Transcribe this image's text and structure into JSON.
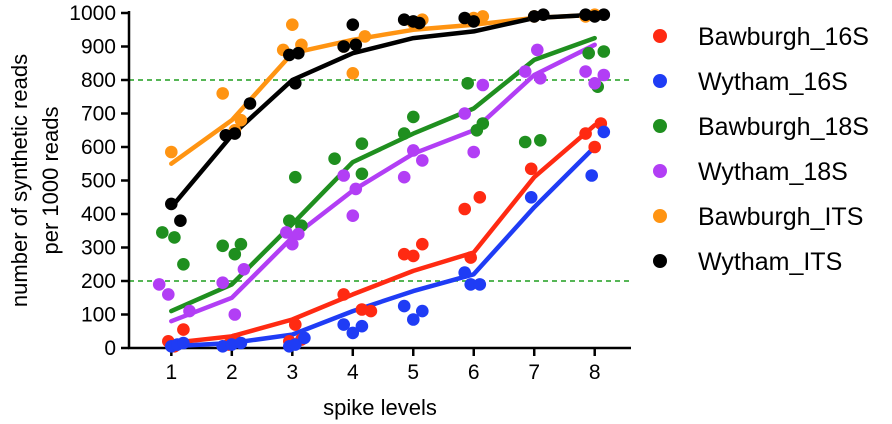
{
  "chart_data": {
    "type": "scatter",
    "xlabel": "spike levels",
    "ylabel_lines": [
      "number of synthetic reads",
      "per 1000 reads"
    ],
    "x_ticks": [
      1,
      2,
      3,
      4,
      5,
      6,
      7,
      8
    ],
    "y_ticks": [
      0,
      100,
      200,
      300,
      400,
      500,
      600,
      700,
      800,
      900,
      1000
    ],
    "xlim": [
      0.3,
      8.6
    ],
    "ylim": [
      0,
      1000
    ],
    "reference_lines": [
      200,
      800
    ],
    "reference_line_color": "#1f9e1f",
    "series": [
      {
        "name": "Bawburgh_16S",
        "color": "#ff2a12",
        "line": [
          [
            1,
            15
          ],
          [
            2,
            35
          ],
          [
            3,
            85
          ],
          [
            4,
            160
          ],
          [
            5,
            230
          ],
          [
            6,
            285
          ],
          [
            7,
            510
          ],
          [
            8,
            665
          ]
        ],
        "points": [
          [
            0.95,
            20
          ],
          [
            1.05,
            5
          ],
          [
            1.2,
            55
          ],
          [
            1.95,
            10
          ],
          [
            2.05,
            25
          ],
          [
            2.95,
            20
          ],
          [
            3.05,
            70
          ],
          [
            3.15,
            25
          ],
          [
            3.85,
            160
          ],
          [
            4.15,
            115
          ],
          [
            4.3,
            110
          ],
          [
            4.85,
            280
          ],
          [
            5.0,
            275
          ],
          [
            5.15,
            310
          ],
          [
            5.85,
            415
          ],
          [
            5.95,
            270
          ],
          [
            6.1,
            450
          ],
          [
            6.95,
            535
          ],
          [
            7.85,
            640
          ],
          [
            8.0,
            600
          ],
          [
            8.1,
            670
          ]
        ]
      },
      {
        "name": "Wytham_16S",
        "color": "#1f3cf5",
        "line": [
          [
            1,
            5
          ],
          [
            2,
            15
          ],
          [
            3,
            40
          ],
          [
            4,
            110
          ],
          [
            5,
            170
          ],
          [
            6,
            220
          ],
          [
            7,
            420
          ],
          [
            8,
            600
          ]
        ],
        "points": [
          [
            1.0,
            5
          ],
          [
            1.1,
            10
          ],
          [
            1.2,
            15
          ],
          [
            1.85,
            5
          ],
          [
            2.0,
            10
          ],
          [
            2.15,
            15
          ],
          [
            2.95,
            5
          ],
          [
            3.05,
            10
          ],
          [
            3.2,
            30
          ],
          [
            3.85,
            70
          ],
          [
            4.0,
            45
          ],
          [
            4.15,
            65
          ],
          [
            4.85,
            125
          ],
          [
            5.0,
            85
          ],
          [
            5.15,
            110
          ],
          [
            5.85,
            225
          ],
          [
            5.95,
            190
          ],
          [
            6.1,
            190
          ],
          [
            6.95,
            450
          ],
          [
            7.95,
            515
          ],
          [
            8.15,
            645
          ]
        ]
      },
      {
        "name": "Bawburgh_18S",
        "color": "#1f8f1f",
        "line": [
          [
            1,
            110
          ],
          [
            2,
            190
          ],
          [
            3,
            370
          ],
          [
            4,
            555
          ],
          [
            5,
            640
          ],
          [
            6,
            715
          ],
          [
            7,
            860
          ],
          [
            8,
            925
          ]
        ],
        "points": [
          [
            0.85,
            345
          ],
          [
            1.05,
            330
          ],
          [
            1.2,
            250
          ],
          [
            1.85,
            305
          ],
          [
            2.05,
            280
          ],
          [
            2.15,
            310
          ],
          [
            2.95,
            380
          ],
          [
            3.05,
            510
          ],
          [
            3.15,
            365
          ],
          [
            3.7,
            565
          ],
          [
            4.15,
            610
          ],
          [
            4.15,
            520
          ],
          [
            4.85,
            640
          ],
          [
            5.0,
            690
          ],
          [
            5.9,
            790
          ],
          [
            6.05,
            650
          ],
          [
            6.15,
            670
          ],
          [
            6.85,
            615
          ],
          [
            7.1,
            620
          ],
          [
            7.9,
            880
          ],
          [
            8.05,
            780
          ],
          [
            8.15,
            885
          ]
        ]
      },
      {
        "name": "Wytham_18S",
        "color": "#b23ef5",
        "line": [
          [
            1,
            80
          ],
          [
            2,
            150
          ],
          [
            3,
            330
          ],
          [
            4,
            470
          ],
          [
            5,
            580
          ],
          [
            6,
            650
          ],
          [
            7,
            815
          ],
          [
            8,
            905
          ]
        ],
        "points": [
          [
            0.8,
            190
          ],
          [
            0.95,
            160
          ],
          [
            1.3,
            110
          ],
          [
            1.85,
            195
          ],
          [
            2.05,
            100
          ],
          [
            2.2,
            235
          ],
          [
            2.9,
            345
          ],
          [
            3.0,
            310
          ],
          [
            3.1,
            340
          ],
          [
            3.85,
            515
          ],
          [
            4.0,
            395
          ],
          [
            4.05,
            475
          ],
          [
            4.85,
            510
          ],
          [
            5.0,
            590
          ],
          [
            5.15,
            560
          ],
          [
            5.85,
            700
          ],
          [
            6.0,
            585
          ],
          [
            6.15,
            785
          ],
          [
            6.85,
            825
          ],
          [
            7.05,
            890
          ],
          [
            7.1,
            805
          ],
          [
            7.85,
            825
          ],
          [
            8.0,
            790
          ],
          [
            8.15,
            815
          ]
        ]
      },
      {
        "name": "Bawburgh_ITS",
        "color": "#ff9412",
        "line": [
          [
            1,
            550
          ],
          [
            2,
            680
          ],
          [
            3,
            880
          ],
          [
            4,
            920
          ],
          [
            5,
            950
          ],
          [
            6,
            965
          ],
          [
            7,
            985
          ],
          [
            8,
            995
          ]
        ],
        "points": [
          [
            1.0,
            585
          ],
          [
            1.85,
            760
          ],
          [
            2.05,
            650
          ],
          [
            2.15,
            680
          ],
          [
            2.85,
            890
          ],
          [
            3.0,
            965
          ],
          [
            3.15,
            905
          ],
          [
            3.85,
            900
          ],
          [
            4.0,
            820
          ],
          [
            4.2,
            930
          ],
          [
            5.0,
            970
          ],
          [
            5.15,
            980
          ],
          [
            6.0,
            985
          ],
          [
            6.15,
            990
          ],
          [
            7.0,
            990
          ],
          [
            7.85,
            990
          ],
          [
            8.0,
            995
          ]
        ]
      },
      {
        "name": "Wytham_ITS",
        "color": "#000000",
        "line": [
          [
            1,
            420
          ],
          [
            2,
            635
          ],
          [
            3,
            800
          ],
          [
            4,
            880
          ],
          [
            5,
            925
          ],
          [
            6,
            945
          ],
          [
            7,
            985
          ],
          [
            8,
            995
          ]
        ],
        "points": [
          [
            1.0,
            430
          ],
          [
            1.15,
            380
          ],
          [
            1.9,
            635
          ],
          [
            2.05,
            640
          ],
          [
            2.3,
            730
          ],
          [
            2.95,
            875
          ],
          [
            3.05,
            790
          ],
          [
            3.1,
            880
          ],
          [
            3.85,
            900
          ],
          [
            4.0,
            965
          ],
          [
            4.05,
            905
          ],
          [
            4.85,
            980
          ],
          [
            5.0,
            975
          ],
          [
            5.1,
            970
          ],
          [
            5.85,
            985
          ],
          [
            6.0,
            975
          ],
          [
            7.0,
            990
          ],
          [
            7.15,
            995
          ],
          [
            7.85,
            995
          ],
          [
            8.0,
            990
          ],
          [
            8.15,
            995
          ]
        ]
      }
    ]
  }
}
